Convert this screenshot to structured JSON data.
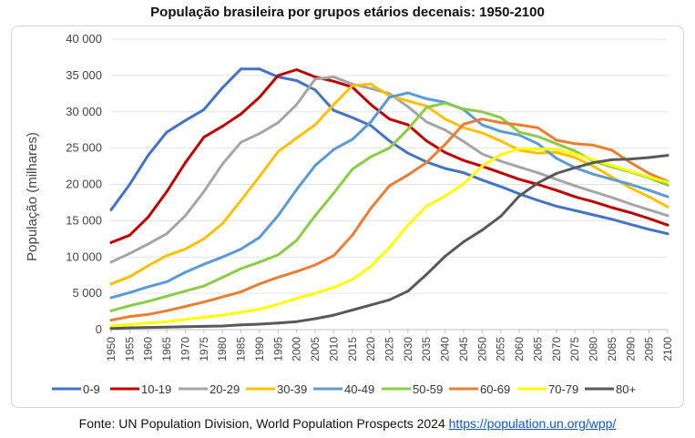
{
  "chart_data": {
    "type": "line",
    "title": "População brasileira por grupos etários decenais: 1950-2100",
    "xlabel": "",
    "ylabel": "População (milhares)",
    "ylim": [
      0,
      40000
    ],
    "xlim": [
      1950,
      2100
    ],
    "yticks": [
      0,
      5000,
      10000,
      15000,
      20000,
      25000,
      30000,
      35000,
      40000
    ],
    "ytick_labels": [
      "0",
      "5 000",
      "10 000",
      "15 000",
      "20 000",
      "25 000",
      "30 000",
      "35 000",
      "40 000"
    ],
    "xticks": [
      1950,
      1955,
      1960,
      1965,
      1970,
      1975,
      1980,
      1985,
      1990,
      1995,
      2000,
      2005,
      2010,
      2015,
      2020,
      2025,
      2030,
      2035,
      2040,
      2045,
      2050,
      2055,
      2060,
      2065,
      2070,
      2075,
      2080,
      2085,
      2090,
      2095,
      2100
    ],
    "grid": "horizontal",
    "legend_position": "bottom",
    "x": [
      1950,
      1955,
      1960,
      1965,
      1970,
      1975,
      1980,
      1985,
      1990,
      1995,
      2000,
      2005,
      2010,
      2015,
      2020,
      2025,
      2030,
      2035,
      2040,
      2045,
      2050,
      2055,
      2060,
      2065,
      2070,
      2075,
      2080,
      2085,
      2090,
      2095,
      2100
    ],
    "series": [
      {
        "name": "0-9",
        "color": "#4472c4",
        "values": [
          16500,
          20000,
          24000,
          27200,
          28800,
          30300,
          33300,
          35900,
          35900,
          34800,
          34300,
          33000,
          30200,
          29200,
          28100,
          26000,
          24300,
          23100,
          22200,
          21600,
          20600,
          19700,
          18700,
          17800,
          17000,
          16400,
          15800,
          15200,
          14500,
          13800,
          13200
        ]
      },
      {
        "name": "10-19",
        "color": "#c00000",
        "values": [
          12000,
          13000,
          15500,
          19000,
          23000,
          26500,
          28000,
          29700,
          32000,
          35000,
          35800,
          34800,
          34200,
          33400,
          31000,
          29000,
          28200,
          26000,
          24400,
          23300,
          22500,
          21600,
          20700,
          20000,
          19200,
          18300,
          17600,
          16800,
          16100,
          15300,
          14400
        ]
      },
      {
        "name": "20-29",
        "color": "#a5a5a5",
        "values": [
          9300,
          10500,
          11800,
          13200,
          15700,
          19000,
          22800,
          25800,
          27000,
          28500,
          31000,
          34500,
          34800,
          33800,
          33200,
          32500,
          30700,
          28600,
          27500,
          25900,
          24200,
          23200,
          22400,
          21600,
          20700,
          19800,
          19000,
          18200,
          17300,
          16500,
          15700
        ]
      },
      {
        "name": "30-39",
        "color": "#ffc000",
        "values": [
          6300,
          7300,
          8800,
          10200,
          11100,
          12500,
          14600,
          17800,
          21100,
          24500,
          26400,
          28200,
          31000,
          33600,
          33800,
          32200,
          31500,
          30800,
          29000,
          27800,
          27100,
          26000,
          24700,
          24300,
          24400,
          23700,
          22500,
          21000,
          19500,
          18300,
          16900
        ]
      },
      {
        "name": "40-49",
        "color": "#5b9bd5",
        "values": [
          4400,
          5100,
          5900,
          6600,
          7900,
          9000,
          10000,
          11100,
          12700,
          15700,
          19300,
          22600,
          24800,
          26200,
          28600,
          32000,
          32600,
          31800,
          31300,
          30300,
          28200,
          27300,
          26800,
          25600,
          23600,
          22300,
          21400,
          20700,
          20000,
          19200,
          18300
        ]
      },
      {
        "name": "50-59",
        "color": "#8bcc44",
        "values": [
          2600,
          3300,
          3900,
          4600,
          5300,
          6000,
          7200,
          8400,
          9300,
          10300,
          12300,
          15700,
          18800,
          22100,
          23800,
          25000,
          27600,
          30600,
          31200,
          30400,
          30000,
          29200,
          27200,
          26600,
          25600,
          24600,
          23200,
          22400,
          21700,
          20900,
          19900
        ]
      },
      {
        "name": "60-69",
        "color": "#ed7d31",
        "values": [
          1300,
          1800,
          2100,
          2600,
          3200,
          3800,
          4500,
          5200,
          6300,
          7200,
          8000,
          8900,
          10200,
          13000,
          16700,
          19800,
          21300,
          23000,
          25500,
          28300,
          29000,
          28500,
          28200,
          27800,
          26100,
          25600,
          25400,
          24700,
          23000,
          21500,
          20400
        ]
      },
      {
        "name": "70-79",
        "color": "#ffff00",
        "values": [
          500,
          700,
          900,
          1100,
          1400,
          1700,
          2000,
          2400,
          2800,
          3500,
          4300,
          5000,
          5800,
          6900,
          8700,
          11300,
          14400,
          17000,
          18400,
          20100,
          22500,
          24100,
          24900,
          24900,
          24800,
          24200,
          23400,
          22600,
          21800,
          21000,
          20300
        ]
      },
      {
        "name": "80+",
        "color": "#595959",
        "values": [
          150,
          250,
          300,
          350,
          400,
          450,
          500,
          650,
          750,
          900,
          1100,
          1500,
          2000,
          2700,
          3400,
          4100,
          5300,
          7600,
          10100,
          12100,
          13700,
          15600,
          18400,
          20200,
          21500,
          22300,
          23000,
          23400,
          23500,
          23700,
          24000
        ]
      }
    ]
  },
  "source": {
    "text": "Fonte: UN Population Division, World Population Prospects 2024",
    "link": "https://population.un.org/wpp/"
  }
}
